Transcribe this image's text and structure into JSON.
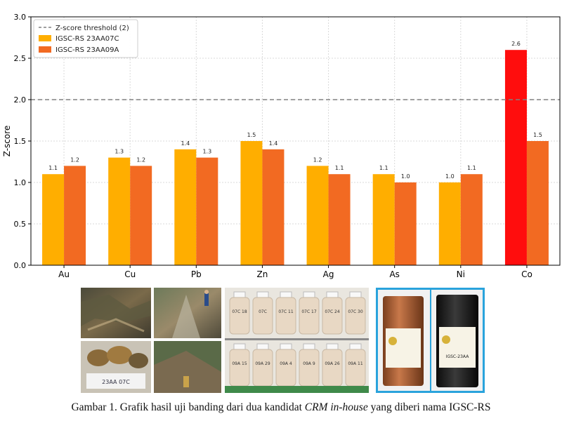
{
  "chart_data": {
    "type": "bar",
    "categories": [
      "Au",
      "Cu",
      "Pb",
      "Zn",
      "Ag",
      "As",
      "Ni",
      "Co"
    ],
    "series": [
      {
        "name": "IGSC-RS 23AA07C",
        "color": "#ffae00",
        "values": [
          1.1,
          1.3,
          1.4,
          1.5,
          1.2,
          1.1,
          1.0,
          2.6
        ],
        "labels": [
          "1.1",
          "1.3",
          "1.4",
          "1.5",
          "1.2",
          "1.1",
          "1.0",
          "2.6"
        ],
        "highlight": {
          "index": 7,
          "color": "#ff0d0d"
        }
      },
      {
        "name": "IGSC-RS 23AA09A",
        "color": "#f26a22",
        "values": [
          1.2,
          1.2,
          1.3,
          1.4,
          1.1,
          1.0,
          1.1,
          1.5
        ],
        "labels": [
          "1.2",
          "1.2",
          "1.3",
          "1.4",
          "1.1",
          "1.0",
          "1.1",
          "1.5"
        ]
      }
    ],
    "threshold": {
      "value": 2,
      "label": "Z-score threshold (2)",
      "style": "dashed",
      "color": "#808080"
    },
    "ylabel": "Z-score",
    "xlabel": "",
    "ylim": [
      0,
      3
    ],
    "yticks": [
      "0.0",
      "0.5",
      "1.0",
      "1.5",
      "2.0",
      "2.5",
      "3.0"
    ],
    "grid": true,
    "legend_position": "top-left"
  },
  "photos": {
    "icons": [
      "rock-outcrop-photo",
      "field-sampling-photo",
      "sample-bottles-photo",
      "crm-container-photo"
    ],
    "bottle_labels_top": [
      "07C 18",
      "07C",
      "07C 11",
      "07C 17",
      "07C 24",
      "07C 30"
    ],
    "bottle_labels_bottom": [
      "09A 15",
      "09A 29",
      "09A 4",
      "09A 9",
      "09A 26",
      "09A 11"
    ],
    "container_label": "IGSC-23AA"
  },
  "caption": {
    "prefix": "Gambar 1. Grafik hasil uji banding dari dua kandidat ",
    "emphasis": "CRM in-house",
    "suffix": " yang diberi nama IGSC-RS"
  }
}
